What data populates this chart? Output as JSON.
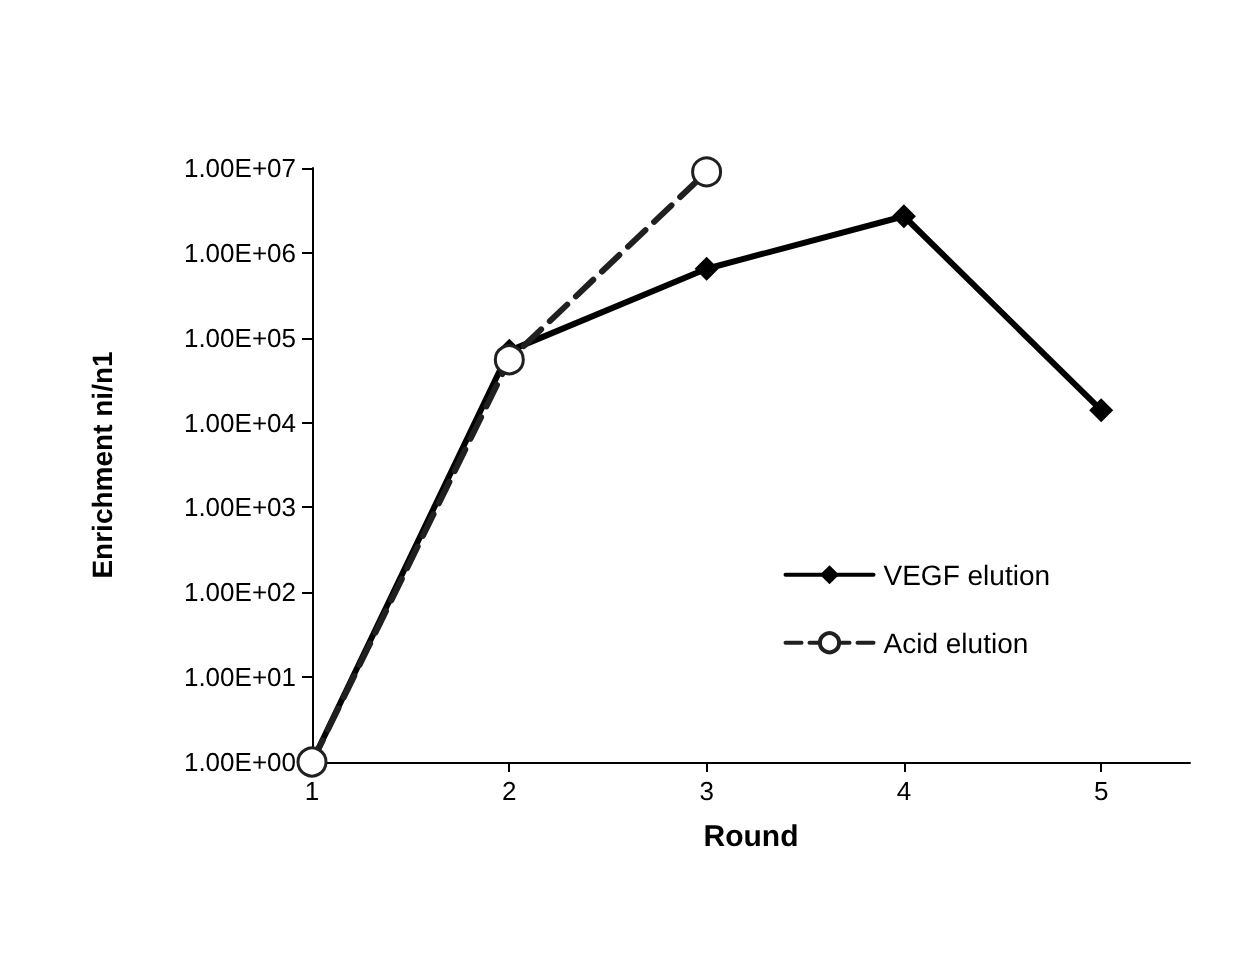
{
  "chart_data": {
    "type": "line",
    "xlabel": "Round",
    "ylabel": "Enrichment ni/n1",
    "log": "y",
    "grid": false,
    "legend": "right",
    "x": [
      1,
      2,
      3,
      4,
      5
    ],
    "xlim": [
      1,
      5.45
    ],
    "xticks": [
      1,
      2,
      3,
      4,
      5
    ],
    "ylim": [
      1,
      10000000
    ],
    "yticks": [
      {
        "value": 1,
        "label": "1.00E+00"
      },
      {
        "value": 10,
        "label": "1.00E+01"
      },
      {
        "value": 100,
        "label": "1.00E+02"
      },
      {
        "value": 1000,
        "label": "1.00E+03"
      },
      {
        "value": 10000,
        "label": "1.00E+04"
      },
      {
        "value": 100000,
        "label": "1.00E+05"
      },
      {
        "value": 1000000,
        "label": "1.00E+06"
      },
      {
        "value": 10000000,
        "label": "1.00E+07"
      }
    ],
    "series": [
      {
        "name": "VEGF elution",
        "color": "#000000",
        "marker": "diamond",
        "line_style": "solid",
        "values": [
          1,
          70000,
          650000,
          2700000,
          14000
        ]
      },
      {
        "name": "Acid elution",
        "color": "#202020",
        "marker": "circle",
        "line_style": "dashed",
        "values": [
          1,
          55000,
          9000000,
          null,
          null
        ]
      }
    ]
  }
}
